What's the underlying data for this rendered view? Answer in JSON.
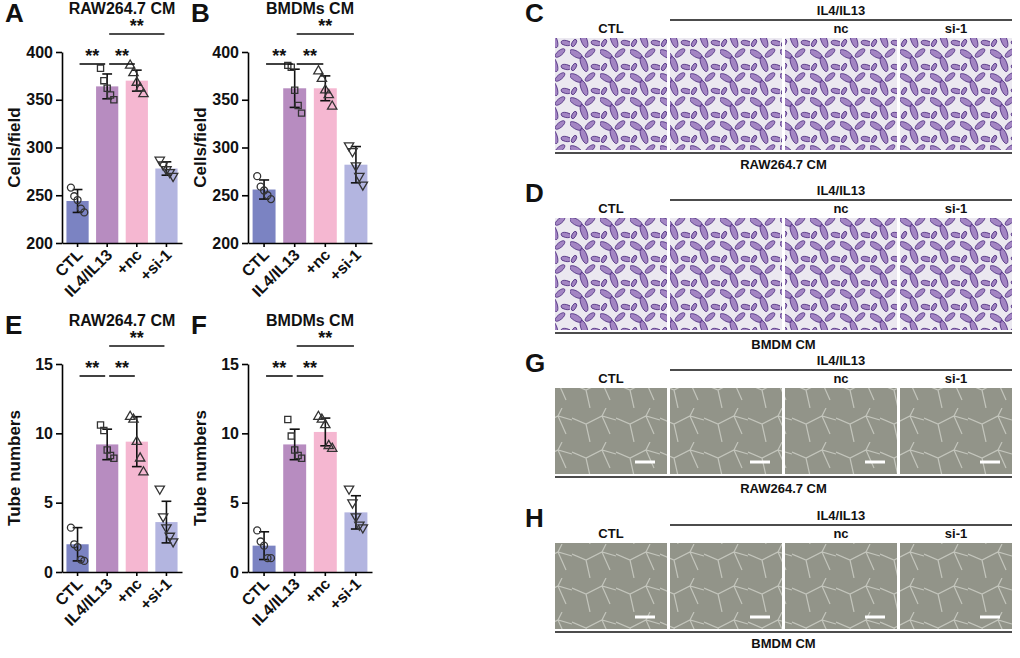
{
  "chart_data": [
    {
      "type": "bar",
      "panel": "A",
      "title": "RAW264.7 CM",
      "y_label": "Cells/field",
      "categories": [
        "CTL",
        "IL4/IL13",
        "+nc",
        "+si-1"
      ],
      "values": [
        244,
        364,
        370,
        278
      ],
      "errors": [
        12,
        13,
        11,
        7
      ],
      "points": [
        [
          258,
          249,
          245,
          236,
          232
        ],
        [
          383,
          370,
          362,
          355,
          350
        ],
        [
          386,
          378,
          368,
          362,
          356
        ],
        [
          287,
          282,
          277,
          274,
          270
        ]
      ],
      "colors": [
        "#7b83c2",
        "#b78cc0",
        "#f5b7d1",
        "#b3b5e0"
      ],
      "markers": [
        "circle",
        "square",
        "triangle",
        "triangle-down"
      ],
      "ylim": [
        200,
        400
      ],
      "yticks": [
        200,
        250,
        300,
        350,
        400
      ],
      "comparisons": [
        {
          "between": [
            "CTL",
            "IL4/IL13"
          ],
          "label": "**"
        },
        {
          "between": [
            "IL4/IL13",
            "+nc"
          ],
          "label": "**"
        },
        {
          "between": [
            "IL4/IL13",
            "+si-1"
          ],
          "label": "**"
        }
      ]
    },
    {
      "type": "bar",
      "panel": "B",
      "title": "BMDMs CM",
      "y_label": "Cells/field",
      "categories": [
        "CTL",
        "IL4/IL13",
        "+nc",
        "+si-1"
      ],
      "values": [
        256,
        362,
        362,
        282
      ],
      "errors": [
        10,
        20,
        13,
        19
      ],
      "points": [
        [
          270,
          259,
          255,
          250,
          246
        ],
        [
          386,
          384,
          360,
          344,
          336
        ],
        [
          380,
          372,
          360,
          355,
          343
        ],
        [
          302,
          296,
          281,
          270,
          261
        ]
      ],
      "colors": [
        "#7b83c2",
        "#b78cc0",
        "#f5b7d1",
        "#b3b5e0"
      ],
      "markers": [
        "circle",
        "square",
        "triangle",
        "triangle-down"
      ],
      "ylim": [
        200,
        400
      ],
      "yticks": [
        200,
        250,
        300,
        350,
        400
      ],
      "comparisons": [
        {
          "between": [
            "CTL",
            "IL4/IL13"
          ],
          "label": "**"
        },
        {
          "between": [
            "IL4/IL13",
            "+nc"
          ],
          "label": "**"
        },
        {
          "between": [
            "IL4/IL13",
            "+si-1"
          ],
          "label": "**"
        }
      ]
    },
    {
      "type": "bar",
      "panel": "E",
      "title": "RAW264.7 CM",
      "y_label": "Tube numbers",
      "categories": [
        "CTL",
        "IL4/IL13",
        "+nc",
        "+si-1"
      ],
      "values": [
        2.0,
        9.2,
        9.4,
        3.6
      ],
      "errors": [
        1.2,
        1.1,
        1.8,
        1.5
      ],
      "points": [
        [
          3.2,
          2.0,
          1.8,
          0.9,
          0.8
        ],
        [
          10.6,
          10.2,
          8.8,
          8.4,
          8.2
        ],
        [
          11.2,
          11.0,
          9.4,
          8.2,
          7.2
        ],
        [
          6.0,
          4.0,
          3.2,
          2.6,
          2.2
        ]
      ],
      "colors": [
        "#7b83c2",
        "#b78cc0",
        "#f5b7d1",
        "#b3b5e0"
      ],
      "markers": [
        "circle",
        "square",
        "triangle",
        "triangle-down"
      ],
      "ylim": [
        0,
        15
      ],
      "yticks": [
        0,
        5,
        10,
        15
      ],
      "comparisons": [
        {
          "between": [
            "CTL",
            "IL4/IL13"
          ],
          "label": "**"
        },
        {
          "between": [
            "IL4/IL13",
            "+nc"
          ],
          "label": "**"
        },
        {
          "between": [
            "IL4/IL13",
            "+si-1"
          ],
          "label": "**"
        }
      ]
    },
    {
      "type": "bar",
      "panel": "F",
      "title": "BMDMs CM",
      "y_label": "Tube numbers",
      "categories": [
        "CTL",
        "IL4/IL13",
        "+nc",
        "+si-1"
      ],
      "values": [
        1.9,
        9.2,
        10.1,
        4.3
      ],
      "errors": [
        1.0,
        1.1,
        1.0,
        1.2
      ],
      "points": [
        [
          3.0,
          2.2,
          1.9,
          1.0,
          1.0
        ],
        [
          11.0,
          9.8,
          8.8,
          8.4,
          8.2
        ],
        [
          11.2,
          11.0,
          10.6,
          9.1,
          8.9
        ],
        [
          6.0,
          5.0,
          4.0,
          3.4,
          3.2
        ]
      ],
      "colors": [
        "#7b83c2",
        "#b78cc0",
        "#f5b7d1",
        "#b3b5e0"
      ],
      "markers": [
        "circle",
        "square",
        "triangle",
        "triangle-down"
      ],
      "ylim": [
        0,
        15
      ],
      "yticks": [
        0,
        5,
        10,
        15
      ],
      "comparisons": [
        {
          "between": [
            "CTL",
            "IL4/IL13"
          ],
          "label": "**"
        },
        {
          "between": [
            "IL4/IL13",
            "+nc"
          ],
          "label": "**"
        },
        {
          "between": [
            "IL4/IL13",
            "+si-1"
          ],
          "label": "**"
        }
      ]
    }
  ],
  "image_panels": [
    {
      "panel": "C",
      "group_label": "IL4/IL13",
      "column_labels": [
        "CTL",
        null,
        "nc",
        "si-1"
      ],
      "caption": "RAW264.7 CM"
    },
    {
      "panel": "D",
      "group_label": "IL4/IL13",
      "column_labels": [
        "CTL",
        null,
        "nc",
        "si-1"
      ],
      "caption": "BMDM CM"
    },
    {
      "panel": "G",
      "group_label": "IL4/IL13",
      "column_labels": [
        "CTL",
        null,
        "nc",
        "si-1"
      ],
      "caption": "RAW264.7 CM"
    },
    {
      "panel": "H",
      "group_label": "IL4/IL13",
      "column_labels": [
        "CTL",
        null,
        "nc",
        "si-1"
      ],
      "caption": "BMDM CM"
    }
  ]
}
